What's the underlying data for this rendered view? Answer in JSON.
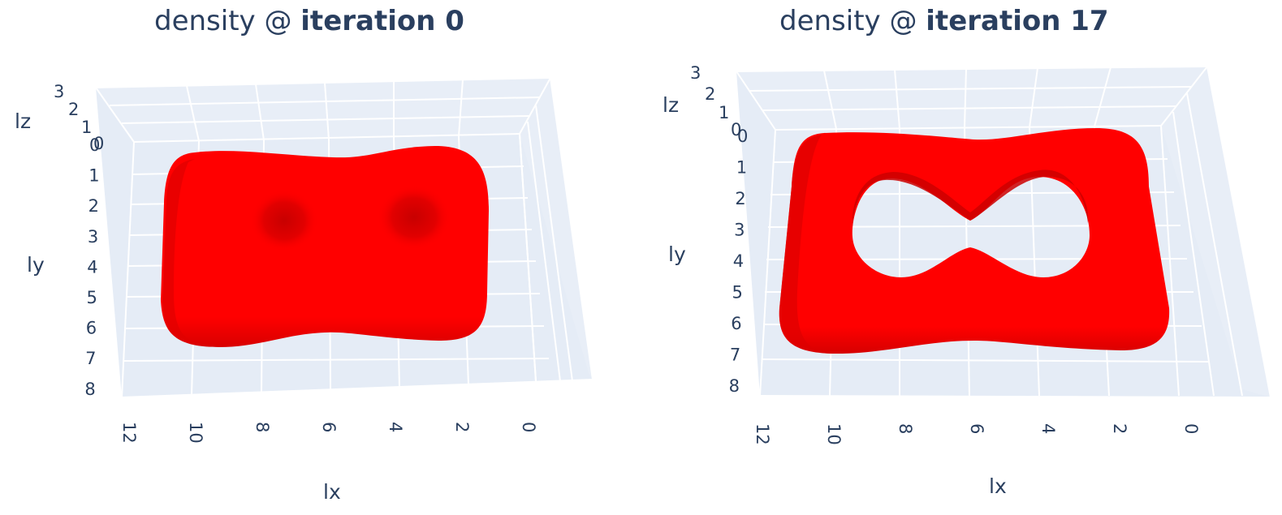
{
  "chart_data": [
    {
      "type": "isosurface",
      "title_prefix": "density @ ",
      "title_bold": "iteration 0",
      "xlabel": "lx",
      "ylabel": "ly",
      "zlabel": "lz",
      "x_ticks": [
        "12",
        "10",
        "8",
        "6",
        "4",
        "2",
        "0"
      ],
      "y_ticks": [
        "0",
        "1",
        "2",
        "3",
        "4",
        "5",
        "6",
        "7",
        "8"
      ],
      "z_ticks": [
        "3",
        "2",
        "1",
        "0"
      ],
      "xlim": [
        0,
        12
      ],
      "ylim": [
        0,
        8
      ],
      "zlim": [
        0,
        3
      ],
      "surface_color": "#ff0000",
      "hole": false,
      "grid": true
    },
    {
      "type": "isosurface",
      "title_prefix": "density @ ",
      "title_bold": "iteration 17",
      "xlabel": "lx",
      "ylabel": "ly",
      "zlabel": "lz",
      "x_ticks": [
        "12",
        "10",
        "8",
        "6",
        "4",
        "2",
        "0"
      ],
      "y_ticks": [
        "0",
        "1",
        "2",
        "3",
        "4",
        "5",
        "6",
        "7",
        "8"
      ],
      "z_ticks": [
        "3",
        "2",
        "1",
        "0"
      ],
      "xlim": [
        0,
        12
      ],
      "ylim": [
        0,
        8
      ],
      "zlim": [
        0,
        3
      ],
      "surface_color": "#ff0000",
      "hole": true,
      "grid": true
    }
  ],
  "colors": {
    "axis_text": "#2a3f5f",
    "pane": "#e5ecf6",
    "grid": "#ffffff",
    "surface": "#ff0000",
    "shade": "#d40000"
  }
}
